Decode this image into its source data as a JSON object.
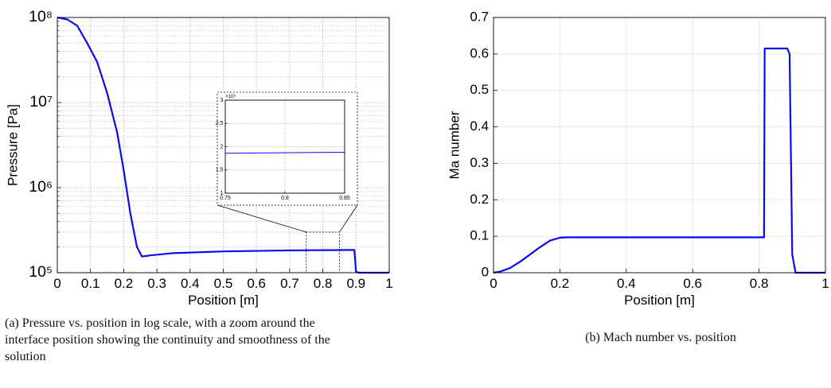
{
  "chart_data": [
    {
      "type": "line",
      "caption": "(a) Pressure vs. position in log scale, with a zoom around the interface position showing the continuity and smoothness of the solution",
      "xlabel": "Position [m]",
      "ylabel": "Pressure [Pa]",
      "log_y": true,
      "grid": true,
      "minor_grid": true,
      "grid_style": "dotted",
      "color": "#0a0af0",
      "xlim": [
        0,
        1
      ],
      "xticks": [
        0,
        0.1,
        0.2,
        0.3,
        0.4,
        0.5,
        0.6,
        0.7,
        0.8,
        0.9,
        1
      ],
      "ylim": [
        100000,
        100000000
      ],
      "yticks": [
        {
          "value": 100000,
          "label": "10⁵"
        },
        {
          "value": 1000000,
          "label": "10⁶"
        },
        {
          "value": 10000000,
          "label": "10⁷"
        },
        {
          "value": 100000000,
          "label": "10⁸"
        }
      ],
      "x": [
        0,
        0.03,
        0.06,
        0.09,
        0.12,
        0.15,
        0.18,
        0.2,
        0.22,
        0.24,
        0.255,
        0.28,
        0.35,
        0.5,
        0.7,
        0.89,
        0.895,
        0.9,
        0.91,
        1
      ],
      "values": [
        100000000,
        95000000,
        80000000,
        50000000,
        30000000,
        13000000,
        4500000,
        1600000,
        500000,
        200000,
        155000,
        160000,
        170000,
        178000,
        183000,
        185000,
        185000,
        102000,
        100000,
        100000
      ]
    },
    {
      "type": "line",
      "grid": true,
      "grid_style": "dotted",
      "color": "#0a0af0",
      "xlim": [
        0.75,
        0.85
      ],
      "xticks": [
        0.75,
        0.8,
        0.85
      ],
      "ylim": [
        1,
        3
      ],
      "yticks": [
        1,
        1.5,
        2,
        2.5,
        3
      ],
      "y_multiplier": {
        "value": 100000,
        "label": "×10⁵"
      },
      "x": [
        0.75,
        0.8,
        0.85
      ],
      "values": [
        1.86,
        1.87,
        1.88
      ]
    },
    {
      "type": "line",
      "caption": "(b) Mach number vs. position",
      "xlabel": "Position [m]",
      "ylabel": "Ma number",
      "grid": true,
      "grid_style": "solid",
      "color": "#0a0af0",
      "xlim": [
        0,
        1
      ],
      "xticks": [
        0,
        0.2,
        0.4,
        0.6,
        0.8,
        1
      ],
      "ylim": [
        0,
        0.7
      ],
      "yticks": [
        0,
        0.1,
        0.2,
        0.3,
        0.4,
        0.5,
        0.6,
        0.7
      ],
      "x": [
        0,
        0.02,
        0.05,
        0.08,
        0.11,
        0.14,
        0.17,
        0.2,
        0.22,
        0.815,
        0.817,
        0.885,
        0.892,
        0.9,
        0.91,
        1
      ],
      "values": [
        0,
        0.003,
        0.013,
        0.03,
        0.05,
        0.07,
        0.088,
        0.096,
        0.097,
        0.097,
        0.615,
        0.615,
        0.6,
        0.05,
        0,
        0
      ]
    }
  ]
}
